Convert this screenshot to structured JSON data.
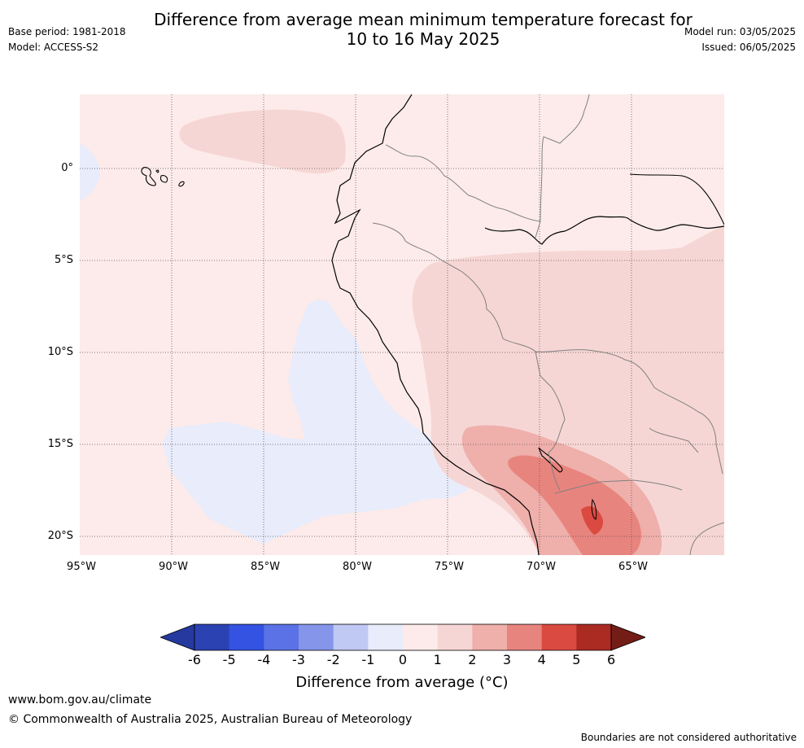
{
  "title": {
    "line1": "Difference from average mean minimum temperature forecast for",
    "line2": "10 to 16 May 2025"
  },
  "meta": {
    "base_period": "Base period: 1981-2018",
    "model": "Model: ACCESS-S2",
    "model_run": "Model run: 03/05/2025",
    "issued": "Issued: 06/05/2025"
  },
  "map": {
    "lat_labels": [
      "0°",
      "5°S",
      "10°S",
      "15°S",
      "20°S"
    ],
    "lon_labels": [
      "95°W",
      "90°W",
      "85°W",
      "80°W",
      "75°W",
      "70°W",
      "65°W"
    ]
  },
  "colorbar": {
    "ticks": [
      "-6",
      "-5",
      "-4",
      "-3",
      "-2",
      "-1",
      "0",
      "1",
      "2",
      "3",
      "4",
      "5",
      "6"
    ],
    "colors": [
      "#26399f",
      "#2b42b3",
      "#3453e3",
      "#5b72e6",
      "#8595ea",
      "#c0c8f4",
      "#e8ecfb",
      "#fcebea",
      "#f6d6d4",
      "#efafab",
      "#e8847e",
      "#da4a40",
      "#ab2a22",
      "#741d16"
    ],
    "label": "Difference from average (°C)"
  },
  "footer": {
    "url": "www.bom.gov.au/climate",
    "copyright": "© Commonwealth of Australia 2025, Australian Bureau of Meteorology",
    "disclaimer": "Boundaries are not considered authoritative"
  }
}
